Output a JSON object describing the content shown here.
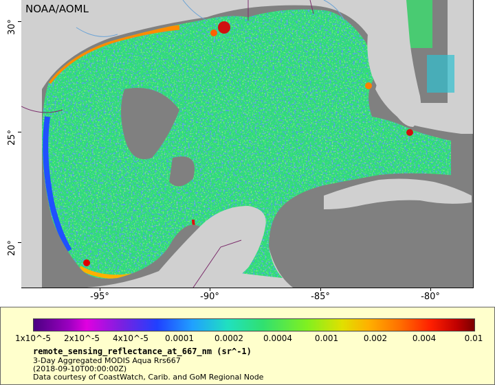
{
  "map": {
    "credit": "NOAA/AOML",
    "y_ticks": [
      "30°",
      "25°",
      "20°"
    ],
    "x_ticks": [
      "-95°",
      "-90°",
      "-85°",
      "-80°"
    ],
    "colors": {
      "land": "#d0d0d0",
      "no_data": "#808080",
      "rivers": "#6ba3d6",
      "borders": "#7b2c6b"
    }
  },
  "legend": {
    "colorbar_labels": [
      "1x10^-5",
      "2x10^-5",
      "4x10^-5",
      "0.0001",
      "0.0002",
      "0.0004",
      "0.001",
      "0.002",
      "0.004",
      "0.01"
    ],
    "variable": "remote_sensing_reflectance_at_667_nm (sr^-1)",
    "product": "3-Day Aggregated MODIS Aqua Rrs667",
    "date": "(2018-09-10T00:00:00Z)",
    "courtesy": "Data courtesy of CoastWatch, Carib. and GoM Regional Node"
  }
}
